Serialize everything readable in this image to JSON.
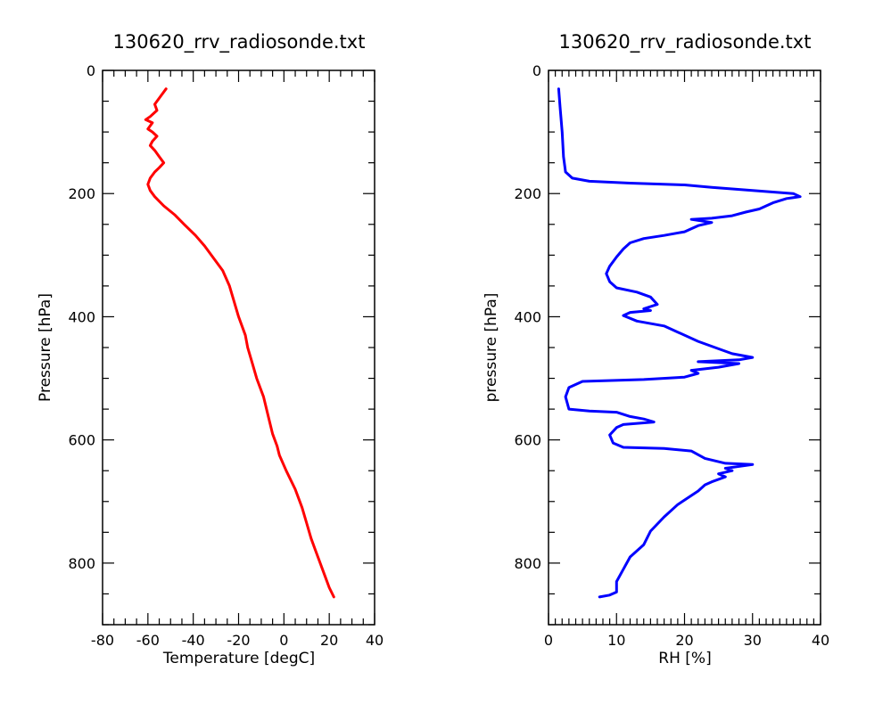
{
  "chart_data": [
    {
      "type": "line",
      "title": "130620_rrv_radiosonde.txt",
      "xlabel": "Temperature [degC]",
      "ylabel": "Pressure [hPa]",
      "xlim": [
        -80,
        40
      ],
      "ylim": [
        900,
        0
      ],
      "y_inverted": true,
      "x_ticks": [
        "-80",
        "-60",
        "-40",
        "-20",
        "0",
        "20",
        "40"
      ],
      "y_ticks": [
        "0",
        "200",
        "400",
        "600",
        "800"
      ],
      "series": [
        {
          "color": "#ff0000",
          "points": [
            [
              -52,
              30
            ],
            [
              -54,
              40
            ],
            [
              -57,
              55
            ],
            [
              -56,
              65
            ],
            [
              -59,
              75
            ],
            [
              -61,
              80
            ],
            [
              -58,
              85
            ],
            [
              -60,
              95
            ],
            [
              -58,
              100
            ],
            [
              -56,
              107
            ],
            [
              -58,
              115
            ],
            [
              -59,
              122
            ],
            [
              -57,
              130
            ],
            [
              -55,
              140
            ],
            [
              -53,
              150
            ],
            [
              -55,
              158
            ],
            [
              -57,
              165
            ],
            [
              -59,
              175
            ],
            [
              -60,
              185
            ],
            [
              -59,
              195
            ],
            [
              -57,
              205
            ],
            [
              -53,
              220
            ],
            [
              -48,
              235
            ],
            [
              -44,
              250
            ],
            [
              -39,
              268
            ],
            [
              -35,
              285
            ],
            [
              -31,
              305
            ],
            [
              -27,
              325
            ],
            [
              -24,
              350
            ],
            [
              -22,
              375
            ],
            [
              -20,
              400
            ],
            [
              -17,
              430
            ],
            [
              -16,
              450
            ],
            [
              -14,
              475
            ],
            [
              -12,
              500
            ],
            [
              -9,
              530
            ],
            [
              -7,
              560
            ],
            [
              -5,
              590
            ],
            [
              -3,
              610
            ],
            [
              -2,
              625
            ],
            [
              1,
              650
            ],
            [
              5,
              680
            ],
            [
              8,
              710
            ],
            [
              10,
              735
            ],
            [
              12,
              760
            ],
            [
              14,
              780
            ],
            [
              16,
              800
            ],
            [
              18,
              820
            ],
            [
              20,
              840
            ],
            [
              22,
              855
            ]
          ]
        }
      ]
    },
    {
      "type": "line",
      "title": "130620_rrv_radiosonde.txt",
      "xlabel": "RH [%]",
      "ylabel": "pressure [hPa]",
      "xlim": [
        0,
        40
      ],
      "ylim": [
        900,
        0
      ],
      "y_inverted": true,
      "x_ticks": [
        "0",
        "10",
        "20",
        "30",
        "40"
      ],
      "y_ticks": [
        "0",
        "200",
        "400",
        "600",
        "800"
      ],
      "series": [
        {
          "color": "#0000ff",
          "points": [
            [
              1.5,
              30
            ],
            [
              1.7,
              60
            ],
            [
              2,
              100
            ],
            [
              2.2,
              140
            ],
            [
              2.5,
              165
            ],
            [
              3.5,
              175
            ],
            [
              6,
              180
            ],
            [
              12,
              183
            ],
            [
              20,
              186
            ],
            [
              24,
              190
            ],
            [
              30,
              195
            ],
            [
              36,
              200
            ],
            [
              37,
              205
            ],
            [
              35,
              208
            ],
            [
              33,
              215
            ],
            [
              31,
              225
            ],
            [
              29,
              230
            ],
            [
              27,
              236
            ],
            [
              24,
              240
            ],
            [
              21,
              242
            ],
            [
              24,
              247
            ],
            [
              22,
              252
            ],
            [
              20,
              262
            ],
            [
              17,
              268
            ],
            [
              14,
              273
            ],
            [
              12,
              280
            ],
            [
              11,
              290
            ],
            [
              10,
              303
            ],
            [
              9,
              318
            ],
            [
              8.5,
              330
            ],
            [
              9,
              343
            ],
            [
              10,
              353
            ],
            [
              13,
              360
            ],
            [
              15,
              368
            ],
            [
              16,
              380
            ],
            [
              14,
              387
            ],
            [
              15,
              390
            ],
            [
              12,
              393
            ],
            [
              11,
              398
            ],
            [
              13,
              407
            ],
            [
              17,
              415
            ],
            [
              19,
              425
            ],
            [
              22,
              440
            ],
            [
              25,
              452
            ],
            [
              27,
              460
            ],
            [
              30,
              466
            ],
            [
              28,
              470
            ],
            [
              22,
              473
            ],
            [
              28,
              476
            ],
            [
              25,
              482
            ],
            [
              21,
              487
            ],
            [
              22,
              492
            ],
            [
              20,
              498
            ],
            [
              14,
              502
            ],
            [
              5,
              505
            ],
            [
              3,
              515
            ],
            [
              2.5,
              530
            ],
            [
              3,
              550
            ],
            [
              6,
              553
            ],
            [
              10,
              555
            ],
            [
              12,
              562
            ],
            [
              14,
              566
            ],
            [
              15.5,
              571
            ],
            [
              11,
              575
            ],
            [
              10,
              580
            ],
            [
              9,
              592
            ],
            [
              9.5,
              605
            ],
            [
              11,
              612
            ],
            [
              17,
              614
            ],
            [
              21,
              618
            ],
            [
              23,
              630
            ],
            [
              26,
              638
            ],
            [
              30,
              640
            ],
            [
              26,
              646
            ],
            [
              27,
              650
            ],
            [
              25,
              655
            ],
            [
              26,
              660
            ],
            [
              24,
              668
            ],
            [
              23,
              673
            ],
            [
              22,
              683
            ],
            [
              19,
              705
            ],
            [
              17,
              725
            ],
            [
              15,
              748
            ],
            [
              14,
              770
            ],
            [
              12,
              790
            ],
            [
              11,
              810
            ],
            [
              10,
              830
            ],
            [
              10,
              847
            ],
            [
              9,
              852
            ],
            [
              7.5,
              855
            ]
          ]
        }
      ]
    }
  ]
}
